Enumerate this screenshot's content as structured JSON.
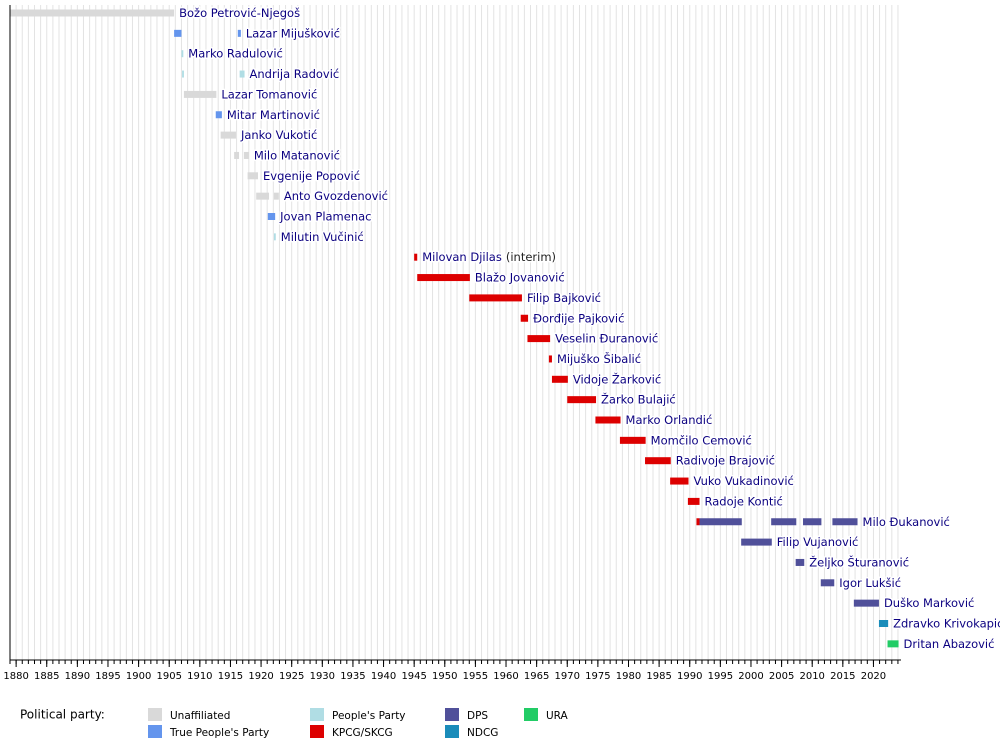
{
  "chart_data": {
    "type": "timeline",
    "xlim": [
      1879,
      2024.5
    ],
    "xticks": [
      1880,
      1885,
      1890,
      1895,
      1900,
      1905,
      1910,
      1915,
      1920,
      1925,
      1930,
      1935,
      1940,
      1945,
      1950,
      1955,
      1960,
      1965,
      1970,
      1975,
      1980,
      1985,
      1990,
      1995,
      2000,
      2005,
      2010,
      2015,
      2020
    ],
    "xminorticks": [
      1879,
      1880,
      1881,
      1882,
      1883,
      1884,
      1885,
      1886,
      1887,
      1888,
      1889,
      1890,
      1891,
      1892,
      1893,
      1894,
      1895,
      1896,
      1897,
      1898,
      1899,
      1900,
      1901,
      1902,
      1903,
      1904,
      1905,
      1906,
      1907,
      1908,
      1909,
      1910,
      1911,
      1912,
      1913,
      1914,
      1915,
      1916,
      1917,
      1918,
      1919,
      1920,
      1921,
      1922,
      1923,
      1924,
      1925,
      1926,
      1927,
      1928,
      1929,
      1930,
      1931,
      1932,
      1933,
      1934,
      1935,
      1936,
      1937,
      1938,
      1939,
      1940,
      1941,
      1942,
      1943,
      1944,
      1945,
      1946,
      1947,
      1948,
      1949,
      1950,
      1951,
      1952,
      1953,
      1954,
      1955,
      1956,
      1957,
      1958,
      1959,
      1960,
      1961,
      1962,
      1963,
      1964,
      1965,
      1966,
      1967,
      1968,
      1969,
      1970,
      1971,
      1972,
      1973,
      1974,
      1975,
      1976,
      1977,
      1978,
      1979,
      1980,
      1981,
      1982,
      1983,
      1984,
      1985,
      1986,
      1987,
      1988,
      1989,
      1990,
      1991,
      1992,
      1993,
      1994,
      1995,
      1996,
      1997,
      1998,
      1999,
      2000,
      2001,
      2002,
      2003,
      2004,
      2005,
      2006,
      2007,
      2008,
      2009,
      2010,
      2011,
      2012,
      2013,
      2014,
      2015,
      2016,
      2017,
      2018,
      2019,
      2020,
      2021,
      2022,
      2023,
      2024
    ],
    "grid": true,
    "legend_title": "Political party:",
    "parties": [
      {
        "name": "Unaffiliated",
        "color": "#d9d9d9"
      },
      {
        "name": "True People's Party",
        "color": "#6495ed"
      },
      {
        "name": "People's Party",
        "color": "#b0dde4"
      },
      {
        "name": "KPCG/SKCG",
        "color": "#dd0000"
      },
      {
        "name": "DPS",
        "color": "#50509a"
      },
      {
        "name": "NDCG",
        "color": "#1a8cba"
      },
      {
        "name": "URA",
        "color": "#22cc66"
      }
    ],
    "rows": [
      {
        "name": "Božo Petrović-Njegoš",
        "segments": [
          {
            "start": 1879,
            "end": 1905.8,
            "party": "Unaffiliated"
          }
        ]
      },
      {
        "name": "Lazar Mijušković",
        "segments": [
          {
            "start": 1905.8,
            "end": 1907,
            "party": "True People's Party"
          },
          {
            "start": 1916.2,
            "end": 1916.7,
            "party": "True People's Party"
          }
        ]
      },
      {
        "name": "Marko Radulović",
        "segments": [
          {
            "start": 1907,
            "end": 1907.3,
            "party": "People's Party"
          }
        ]
      },
      {
        "name": "Andrija Radović",
        "segments": [
          {
            "start": 1907.1,
            "end": 1907.4,
            "party": "People's Party"
          },
          {
            "start": 1916.5,
            "end": 1917.3,
            "party": "People's Party"
          }
        ]
      },
      {
        "name": "Lazar Tomanović",
        "segments": [
          {
            "start": 1907.4,
            "end": 1912.7,
            "party": "Unaffiliated"
          }
        ]
      },
      {
        "name": "Mitar Martinović",
        "segments": [
          {
            "start": 1912.6,
            "end": 1913.6,
            "party": "True People's Party"
          }
        ]
      },
      {
        "name": "Janko Vukotić",
        "segments": [
          {
            "start": 1913.4,
            "end": 1915.9,
            "party": "Unaffiliated"
          }
        ]
      },
      {
        "name": "Milo Matanović",
        "segments": [
          {
            "start": 1915.6,
            "end": 1916.4,
            "party": "Unaffiliated"
          },
          {
            "start": 1917.2,
            "end": 1918,
            "party": "Unaffiliated"
          }
        ]
      },
      {
        "name": "Evgenije Popović",
        "segments": [
          {
            "start": 1917.8,
            "end": 1919.5,
            "party": "Unaffiliated"
          }
        ]
      },
      {
        "name": "Anto Gvozdenović",
        "segments": [
          {
            "start": 1919.2,
            "end": 1921.3,
            "party": "Unaffiliated"
          },
          {
            "start": 1922.1,
            "end": 1922.9,
            "party": "Unaffiliated"
          }
        ]
      },
      {
        "name": "Jovan Plamenac",
        "segments": [
          {
            "start": 1921.1,
            "end": 1922.3,
            "party": "True People's Party"
          }
        ]
      },
      {
        "name": "Milutin Vučinić",
        "segments": [
          {
            "start": 1922.1,
            "end": 1922.4,
            "party": "People's Party"
          }
        ]
      },
      {
        "name": "Milovan Djilas",
        "note": "(interim)",
        "segments": [
          {
            "start": 1945,
            "end": 1945.5,
            "party": "KPCG/SKCG"
          }
        ]
      },
      {
        "name": "Blažo Jovanović",
        "segments": [
          {
            "start": 1945.5,
            "end": 1954.1,
            "party": "KPCG/SKCG"
          }
        ]
      },
      {
        "name": "Filip Bajković",
        "segments": [
          {
            "start": 1954,
            "end": 1962.6,
            "party": "KPCG/SKCG"
          }
        ]
      },
      {
        "name": "Đorđije Pajković",
        "segments": [
          {
            "start": 1962.4,
            "end": 1963.6,
            "party": "KPCG/SKCG"
          }
        ]
      },
      {
        "name": "Veselin Đuranović",
        "segments": [
          {
            "start": 1963.5,
            "end": 1967.2,
            "party": "KPCG/SKCG"
          }
        ]
      },
      {
        "name": "Mijuško Šibalić",
        "segments": [
          {
            "start": 1967,
            "end": 1967.5,
            "party": "KPCG/SKCG"
          }
        ]
      },
      {
        "name": "Vidoje Žarković",
        "segments": [
          {
            "start": 1967.5,
            "end": 1970.1,
            "party": "KPCG/SKCG"
          }
        ]
      },
      {
        "name": "Žarko Bulajić",
        "segments": [
          {
            "start": 1970,
            "end": 1974.7,
            "party": "KPCG/SKCG"
          }
        ]
      },
      {
        "name": "Marko Orlandić",
        "segments": [
          {
            "start": 1974.6,
            "end": 1978.7,
            "party": "KPCG/SKCG"
          }
        ]
      },
      {
        "name": "Momčilo Cemović",
        "segments": [
          {
            "start": 1978.6,
            "end": 1982.8,
            "party": "KPCG/SKCG"
          }
        ]
      },
      {
        "name": "Radivoje Brajović",
        "segments": [
          {
            "start": 1982.7,
            "end": 1986.9,
            "party": "KPCG/SKCG"
          }
        ]
      },
      {
        "name": "Vuko Vukadinović",
        "segments": [
          {
            "start": 1986.8,
            "end": 1989.8,
            "party": "KPCG/SKCG"
          }
        ]
      },
      {
        "name": "Radoje Kontić",
        "segments": [
          {
            "start": 1989.7,
            "end": 1991.6,
            "party": "KPCG/SKCG"
          }
        ]
      },
      {
        "name": "Milo Đukanović",
        "segments": [
          {
            "start": 1991.1,
            "end": 1991.6,
            "party": "KPCG/SKCG"
          },
          {
            "start": 1991.6,
            "end": 1998.5,
            "party": "DPS"
          },
          {
            "start": 2003.3,
            "end": 2007.4,
            "party": "DPS"
          },
          {
            "start": 2008.5,
            "end": 2011.5,
            "party": "DPS"
          },
          {
            "start": 2013.3,
            "end": 2017.4,
            "party": "DPS"
          }
        ]
      },
      {
        "name": "Filip Vujanović",
        "segments": [
          {
            "start": 1998.4,
            "end": 2003.4,
            "party": "DPS"
          }
        ]
      },
      {
        "name": "Željko Šturanović",
        "segments": [
          {
            "start": 2007.3,
            "end": 2008.7,
            "party": "DPS"
          }
        ]
      },
      {
        "name": "Igor Lukšić",
        "segments": [
          {
            "start": 2011.4,
            "end": 2013.6,
            "party": "DPS"
          }
        ]
      },
      {
        "name": "Duško Marković",
        "segments": [
          {
            "start": 2016.8,
            "end": 2020.9,
            "party": "DPS"
          }
        ]
      },
      {
        "name": "Zdravko Krivokapić",
        "segments": [
          {
            "start": 2020.9,
            "end": 2022.4,
            "party": "NDCG"
          }
        ]
      },
      {
        "name": "Dritan Abazović",
        "segments": [
          {
            "start": 2022.3,
            "end": 2024.1,
            "party": "URA"
          }
        ]
      }
    ]
  }
}
